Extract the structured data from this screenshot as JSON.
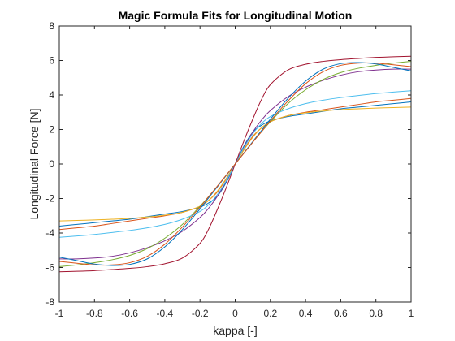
{
  "chart_data": {
    "type": "line",
    "title": "Magic Formula Fits for Longitudinal Motion",
    "xlabel": "kappa [-]",
    "ylabel": "Longitudinal Force [N]",
    "xlim": [
      -1,
      1
    ],
    "ylim": [
      -8,
      8
    ],
    "xticks": [
      -1,
      -0.8,
      -0.6,
      -0.4,
      -0.2,
      0,
      0.2,
      0.4,
      0.6,
      0.8,
      1
    ],
    "xtick_labels": [
      "-1",
      "-0.8",
      "-0.6",
      "-0.4",
      "-0.2",
      "0",
      "0.2",
      "0.4",
      "0.6",
      "0.8",
      "1"
    ],
    "yticks": [
      -8,
      -6,
      -4,
      -2,
      0,
      2,
      4,
      6,
      8
    ],
    "ytick_labels": [
      "-8",
      "-6",
      "-4",
      "-2",
      "0",
      "2",
      "4",
      "6",
      "8"
    ],
    "grid": false,
    "x": [
      -1,
      -0.9,
      -0.8,
      -0.7,
      -0.6,
      -0.5,
      -0.4,
      -0.3,
      -0.2,
      -0.15,
      -0.1,
      -0.05,
      0,
      0.05,
      0.1,
      0.15,
      0.2,
      0.3,
      0.4,
      0.5,
      0.6,
      0.7,
      0.8,
      0.9,
      1
    ],
    "series": [
      {
        "color": "#0072BD",
        "values": [
          -3.6,
          -3.5,
          -3.4,
          -3.3,
          -3.2,
          -3.05,
          -2.9,
          -2.75,
          -2.5,
          -2.25,
          -1.85,
          -1.05,
          0,
          1.05,
          1.85,
          2.25,
          2.5,
          2.75,
          2.9,
          3.05,
          3.2,
          3.3,
          3.4,
          3.5,
          3.6
        ]
      },
      {
        "color": "#D95319",
        "values": [
          -3.8,
          -3.7,
          -3.6,
          -3.45,
          -3.3,
          -3.15,
          -3.0,
          -2.8,
          -2.45,
          -2.1,
          -1.6,
          -0.85,
          0,
          0.85,
          1.6,
          2.1,
          2.45,
          2.8,
          3.0,
          3.15,
          3.3,
          3.45,
          3.6,
          3.7,
          3.8
        ]
      },
      {
        "color": "#EDB120",
        "values": [
          -3.3,
          -3.27,
          -3.24,
          -3.2,
          -3.15,
          -3.07,
          -2.97,
          -2.8,
          -2.45,
          -2.1,
          -1.55,
          -0.82,
          0,
          0.82,
          1.55,
          2.1,
          2.45,
          2.8,
          2.97,
          3.07,
          3.15,
          3.2,
          3.24,
          3.27,
          3.3
        ]
      },
      {
        "color": "#7E2F8E",
        "values": [
          -5.5,
          -5.5,
          -5.45,
          -5.35,
          -5.15,
          -4.85,
          -4.45,
          -3.9,
          -3.1,
          -2.55,
          -1.85,
          -0.98,
          0,
          0.98,
          1.85,
          2.55,
          3.1,
          3.9,
          4.45,
          4.85,
          5.15,
          5.35,
          5.45,
          5.5,
          5.5
        ]
      },
      {
        "color": "#77AC30",
        "values": [
          -5.95,
          -5.85,
          -5.72,
          -5.55,
          -5.3,
          -4.9,
          -4.3,
          -3.5,
          -2.45,
          -1.88,
          -1.28,
          -0.65,
          0,
          0.65,
          1.28,
          1.88,
          2.45,
          3.5,
          4.3,
          4.9,
          5.3,
          5.55,
          5.72,
          5.85,
          5.95
        ]
      },
      {
        "color": "#4DBEEE",
        "values": [
          -4.25,
          -4.17,
          -4.08,
          -3.97,
          -3.85,
          -3.7,
          -3.5,
          -3.2,
          -2.75,
          -2.35,
          -1.75,
          -0.95,
          0,
          0.95,
          1.75,
          2.35,
          2.75,
          3.2,
          3.5,
          3.7,
          3.85,
          3.97,
          4.08,
          4.17,
          4.25
        ]
      },
      {
        "color": "#A2142F",
        "values": [
          -6.25,
          -6.22,
          -6.18,
          -6.12,
          -6.05,
          -5.95,
          -5.78,
          -5.45,
          -4.6,
          -3.75,
          -2.6,
          -1.35,
          0,
          1.35,
          2.6,
          3.75,
          4.6,
          5.45,
          5.78,
          5.95,
          6.05,
          6.12,
          6.18,
          6.22,
          6.25
        ]
      },
      {
        "color": "#0072BD",
        "values": [
          -5.4,
          -5.6,
          -5.8,
          -5.88,
          -5.82,
          -5.5,
          -4.8,
          -3.8,
          -2.6,
          -1.95,
          -1.3,
          -0.65,
          0,
          0.65,
          1.3,
          1.95,
          2.6,
          3.8,
          4.8,
          5.5,
          5.82,
          5.88,
          5.8,
          5.6,
          5.4
        ]
      },
      {
        "color": "#D95319",
        "values": [
          -5.65,
          -5.75,
          -5.85,
          -5.85,
          -5.72,
          -5.35,
          -4.65,
          -3.65,
          -2.5,
          -1.88,
          -1.26,
          -0.63,
          0,
          0.63,
          1.26,
          1.88,
          2.5,
          3.65,
          4.65,
          5.35,
          5.72,
          5.85,
          5.85,
          5.75,
          5.65
        ]
      }
    ]
  }
}
